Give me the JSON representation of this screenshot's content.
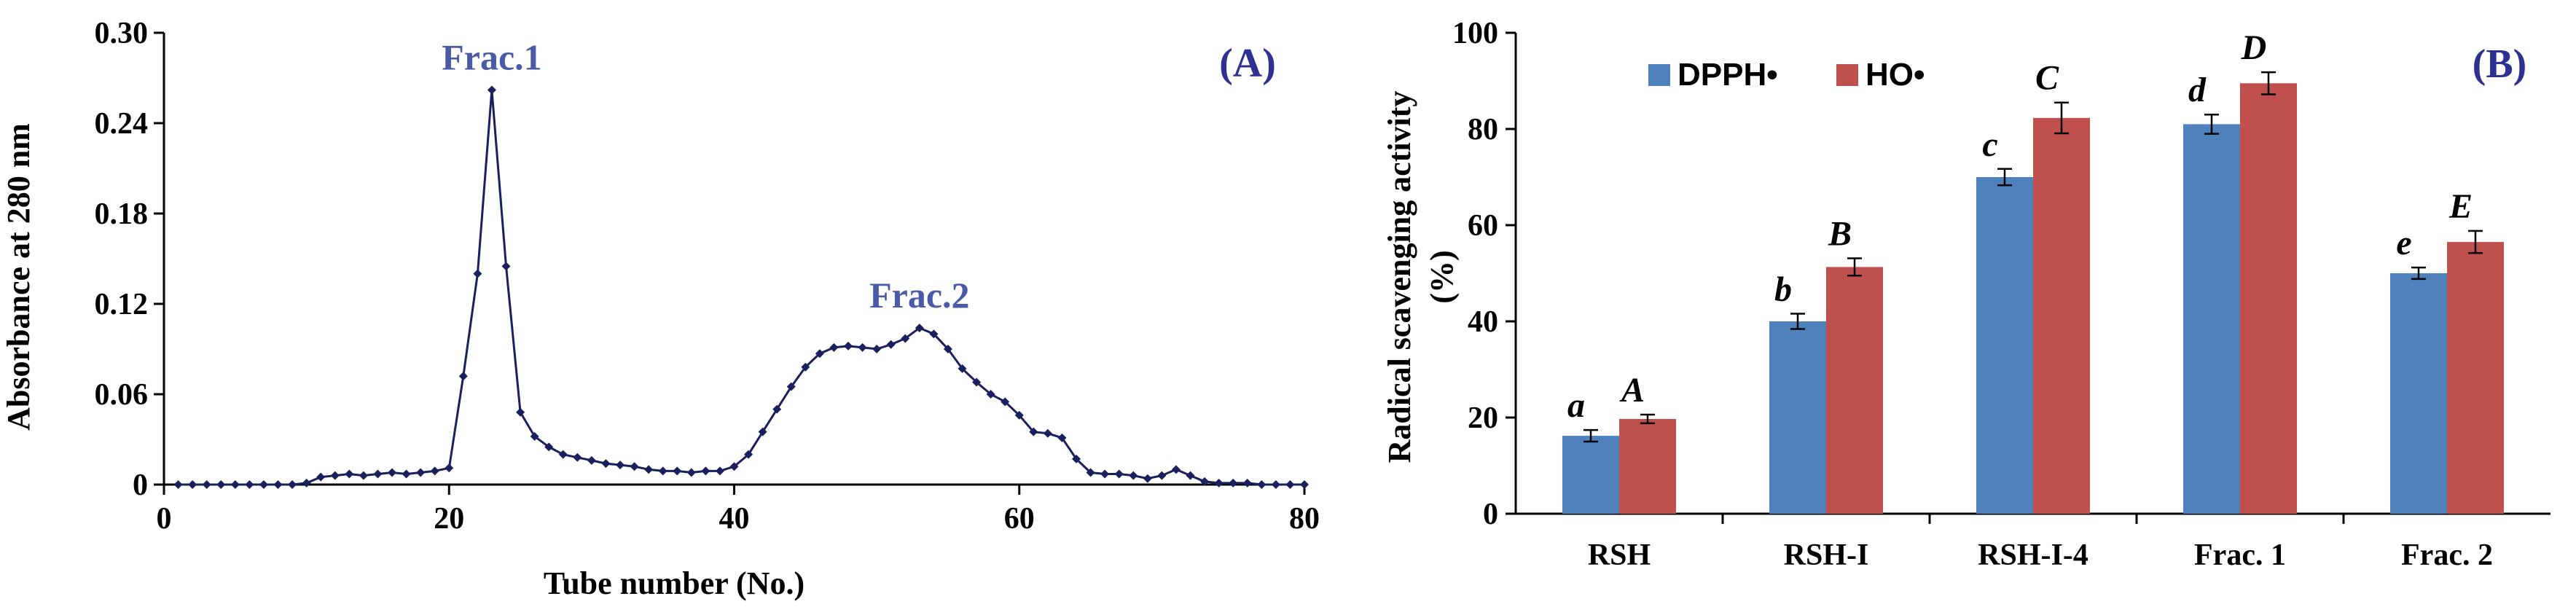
{
  "chart_data": [
    {
      "type": "line",
      "panel_label": "(A)",
      "xlabel": "Tube number (No.)",
      "ylabel": "Absorbance at 280 nm",
      "xlim": [
        0,
        80
      ],
      "ylim": [
        0,
        0.3
      ],
      "xticks": [
        "0",
        "20",
        "40",
        "60",
        "80"
      ],
      "yticks": [
        "0",
        "0.06",
        "0.12",
        "0.18",
        "0.24",
        "0.30"
      ],
      "annotations": [
        {
          "text": "Frac.1",
          "x": 23,
          "y": 0.262
        },
        {
          "text": "Frac.2",
          "x": 53,
          "y": 0.104
        }
      ],
      "line_color": "#1a1f5e",
      "annotation_color": "#4a5aa8",
      "x": [
        1,
        2,
        3,
        4,
        5,
        6,
        7,
        8,
        9,
        10,
        11,
        12,
        13,
        14,
        15,
        16,
        17,
        18,
        19,
        20,
        21,
        22,
        23,
        24,
        25,
        26,
        27,
        28,
        29,
        30,
        31,
        32,
        33,
        34,
        35,
        36,
        37,
        38,
        39,
        40,
        41,
        42,
        43,
        44,
        45,
        46,
        47,
        48,
        49,
        50,
        51,
        52,
        53,
        54,
        55,
        56,
        57,
        58,
        59,
        60,
        61,
        62,
        63,
        64,
        65,
        66,
        67,
        68,
        69,
        70,
        71,
        72,
        73,
        74,
        75,
        76,
        77,
        78,
        79,
        80
      ],
      "y": [
        0,
        0,
        0,
        0,
        0,
        0,
        0,
        0,
        0,
        0.001,
        0.005,
        0.006,
        0.007,
        0.006,
        0.007,
        0.008,
        0.007,
        0.008,
        0.009,
        0.011,
        0.072,
        0.14,
        0.262,
        0.145,
        0.048,
        0.032,
        0.025,
        0.02,
        0.018,
        0.016,
        0.014,
        0.013,
        0.012,
        0.01,
        0.009,
        0.009,
        0.008,
        0.009,
        0.009,
        0.012,
        0.02,
        0.035,
        0.05,
        0.065,
        0.078,
        0.087,
        0.091,
        0.092,
        0.091,
        0.09,
        0.093,
        0.097,
        0.104,
        0.1,
        0.09,
        0.077,
        0.068,
        0.06,
        0.055,
        0.046,
        0.035,
        0.034,
        0.031,
        0.017,
        0.008,
        0.007,
        0.007,
        0.006,
        0.004,
        0.006,
        0.01,
        0.006,
        0.002,
        0.001,
        0.001,
        0.001,
        0,
        0,
        0,
        0
      ]
    },
    {
      "type": "bar",
      "panel_label": "(B)",
      "ylabel": "Radical scavenging activity (%)",
      "ylim": [
        0,
        100
      ],
      "yticks": [
        "0",
        "20",
        "40",
        "60",
        "80",
        "100"
      ],
      "categories": [
        "RSH",
        "RSH-I",
        "RSH-I-4",
        "Frac. 1",
        "Frac. 2"
      ],
      "legend_position": "top-left",
      "series": [
        {
          "name": "DPPH•",
          "color": "#4f81bd",
          "values": [
            16.2,
            40.0,
            70.0,
            81.0,
            50.0
          ],
          "errors": [
            1.2,
            1.6,
            1.7,
            2.0,
            1.2
          ],
          "letters": [
            "a",
            "b",
            "c",
            "d",
            "e"
          ]
        },
        {
          "name": "HO•",
          "color": "#c0504d",
          "values": [
            19.7,
            51.3,
            82.3,
            89.5,
            56.5
          ],
          "errors": [
            0.9,
            1.8,
            3.2,
            2.3,
            2.3
          ],
          "letters": [
            "A",
            "B",
            "C",
            "D",
            "E"
          ]
        }
      ]
    }
  ]
}
